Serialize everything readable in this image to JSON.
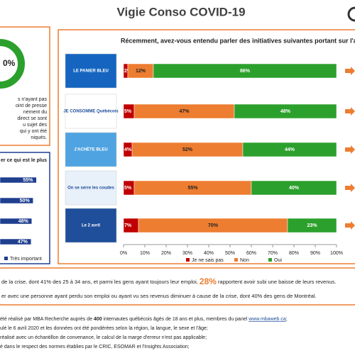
{
  "header": {
    "title": "Vigie Conso COVID-19"
  },
  "chart_data": [
    {
      "type": "bar",
      "orientation": "horizontal",
      "stacked": true,
      "title": "Récemment, avez-vous entendu parler des initiatives suivantes portant sur l'a",
      "categories": [
        "LE PANIER BLEU",
        "JE CONSOMME Québécois",
        "J'ACHÈTE BLEU",
        "On se serre les coudes",
        "Le 2 avril"
      ],
      "series": [
        {
          "name": "Je ne sais pas",
          "color": "#c00000",
          "values": [
            2,
            5,
            4,
            5,
            7
          ],
          "value_labels": [
            "2%",
            "5%",
            "4%",
            "5%",
            "7%"
          ]
        },
        {
          "name": "Non",
          "color": "#ed7d31",
          "values": [
            12,
            47,
            52,
            55,
            70
          ],
          "value_labels": [
            "12%",
            "47%",
            "52%",
            "55%",
            "70%"
          ]
        },
        {
          "name": "Oui",
          "color": "#2ca02c",
          "values": [
            86,
            48,
            44,
            40,
            23
          ],
          "value_labels": [
            "86%",
            "48%",
            "44%",
            "40%",
            "23%"
          ]
        }
      ],
      "xlim": [
        0,
        100
      ],
      "xticks": [
        {
          "value": 0,
          "label": "0%"
        },
        {
          "value": 10,
          "label": "10%"
        },
        {
          "value": 20,
          "label": "20%"
        },
        {
          "value": 30,
          "label": "30%"
        },
        {
          "value": 40,
          "label": "40%"
        },
        {
          "value": 50,
          "label": "50%"
        },
        {
          "value": 60,
          "label": "60%"
        },
        {
          "value": 70,
          "label": "70%"
        },
        {
          "value": 80,
          "label": "80%"
        },
        {
          "value": 90,
          "label": "90%"
        },
        {
          "value": 100,
          "label": "100%"
        }
      ],
      "legend": "bottom"
    },
    {
      "type": "bar",
      "orientation": "horizontal",
      "title": "er ce qui est le plus",
      "categories": [
        null,
        null,
        null,
        null
      ],
      "series": [
        {
          "name": "Très important",
          "color": "#1f3f8f",
          "values": [
            55,
            50,
            48,
            47
          ],
          "value_labels": [
            "55%",
            "50%",
            "48%",
            "47%"
          ]
        }
      ],
      "xlim": [
        0,
        75
      ],
      "legend": "bottom"
    }
  ],
  "left_panel": {
    "donut_label": "0%",
    "text": [
      "s n'ayant pas",
      "oint de presse",
      "nement du",
      "direct se sont",
      "u sujet des",
      "qui y ont été",
      "niqués."
    ]
  },
  "summary": {
    "line1": [
      "de la crise, dont 41% des 25 à 34 ans, et parmi les gens ayant toujours leur emploi, ",
      "28%",
      " rapportent avoir subi une baisse de leurs revenus."
    ],
    "line2": "er avec une personne ayant perdu son emploi ou ayant vu ses revenus diminuer à cause de la crise, dont 40% des gens de Montréal."
  },
  "footer": {
    "line1": [
      "été réalisé par MBA Recherche auprès de ",
      "400",
      " internautes québécois âgés de 18 ans et plus, membres du panel ",
      "www.mbaweb.ca",
      ";"
    ],
    "lines": [
      "ulé le 6 avril 2020 et les données ont été pondérées selon la région, la langue, le sexe et l'âge;",
      "réalisé avec un échantillon de convenance, le calcul de la marge d'erreur n'est pas applicable;",
      "é dans le respect des normes établies par le CRIC, ESOMAR et l'Insights Association;"
    ]
  }
}
